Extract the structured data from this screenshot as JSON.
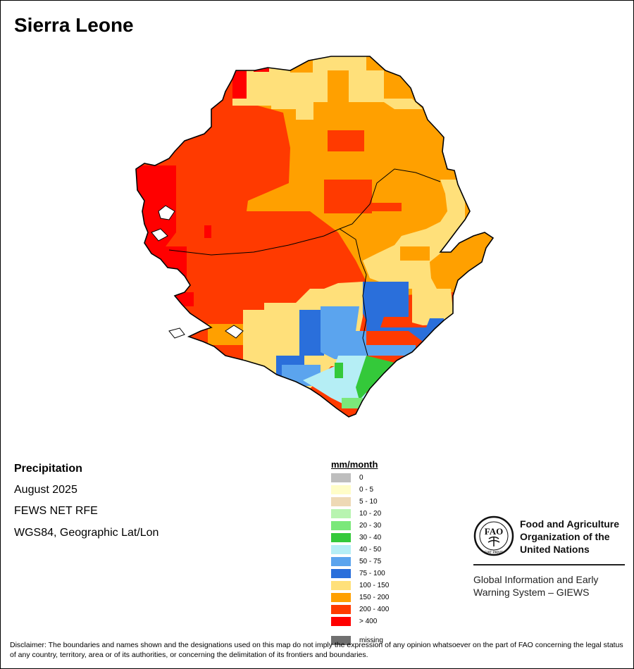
{
  "title": "Sierra Leone",
  "info": {
    "product": "Precipitation",
    "period": "August 2025",
    "source": "FEWS NET RFE",
    "projection": "WGS84, Geographic Lat/Lon"
  },
  "legend": {
    "title": "mm/month",
    "items": [
      {
        "label": "0",
        "color": "#BEBEBE"
      },
      {
        "label": "0 - 5",
        "color": "#FFFDC8"
      },
      {
        "label": "5 - 10",
        "color": "#EED9B5"
      },
      {
        "label": "10 - 20",
        "color": "#B8F4B0"
      },
      {
        "label": "20 - 30",
        "color": "#7BE87A"
      },
      {
        "label": "30 - 40",
        "color": "#34C93A"
      },
      {
        "label": "40 - 50",
        "color": "#B5EEF5"
      },
      {
        "label": "50 - 75",
        "color": "#5BA4EE"
      },
      {
        "label": "75 - 100",
        "color": "#2A6FDB"
      },
      {
        "label": "100 - 150",
        "color": "#FFE07A"
      },
      {
        "label": "150 - 200",
        "color": "#FFA000"
      },
      {
        "label": "200 - 400",
        "color": "#FF3A00"
      },
      {
        "label": "> 400",
        "color": "#FF0000"
      },
      {
        "label": "missing",
        "color": "#707070"
      }
    ]
  },
  "fao": {
    "line1": "Food and Agriculture",
    "line2": "Organization of the",
    "line3": "United Nations"
  },
  "giews": {
    "line1": "Global Information and Early",
    "line2": "Warning System – GIEWS"
  },
  "disclaimer": "Disclaimer: The boundaries and names shown and the designations used on this map do not imply the expression of any opinion whatsoever on the part of FAO concerning the legal status of any country, territory, area or of its authorities, or concerning the delimitation of its frontiers and boundaries."
}
